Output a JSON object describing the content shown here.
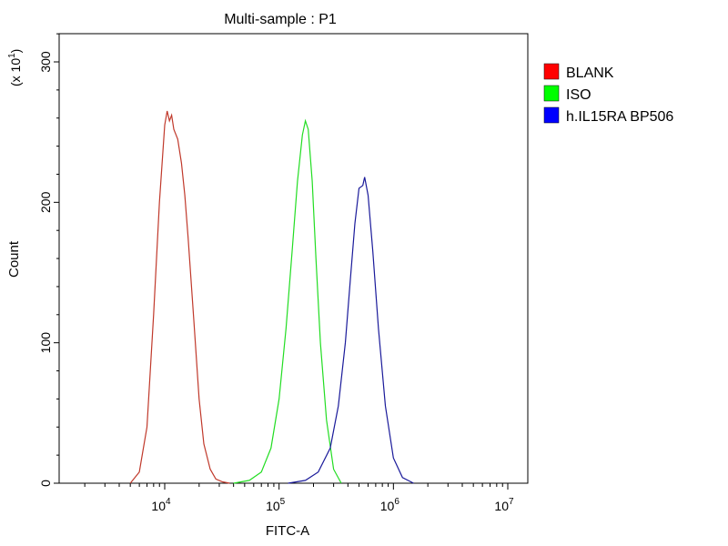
{
  "chart_data": {
    "type": "line",
    "title": "Multi-sample : P1",
    "xlabel": "FITC-A",
    "ylabel": "Count",
    "y_multiplier_label": "(x 10",
    "y_multiplier_exp": "1",
    "x_scale": "log",
    "xlim": [
      1000,
      10000000
    ],
    "ylim": [
      0,
      320
    ],
    "x_ticks": [
      {
        "base": "10",
        "exp": "4",
        "value": 10000
      },
      {
        "base": "10",
        "exp": "5",
        "value": 100000
      },
      {
        "base": "10",
        "exp": "6",
        "value": 1000000
      },
      {
        "base": "10",
        "exp": "7",
        "value": 10000000
      }
    ],
    "y_ticks": [
      {
        "label": "0",
        "value": 0
      },
      {
        "label": "100",
        "value": 100
      },
      {
        "label": "200",
        "value": 200
      },
      {
        "label": "300",
        "value": 300
      }
    ],
    "grid": false,
    "legend_position": "right",
    "series": [
      {
        "name": "BLANK",
        "color": "#ff0000",
        "line_color": "#c0392b",
        "x": [
          5000,
          6000,
          7000,
          8000,
          9000,
          10000,
          10500,
          11000,
          11500,
          12000,
          13000,
          14000,
          15000,
          16000,
          18000,
          20000,
          22000,
          25000,
          28000,
          32000,
          37000
        ],
        "y": [
          0,
          8,
          40,
          120,
          200,
          255,
          265,
          258,
          262,
          252,
          245,
          228,
          205,
          175,
          115,
          60,
          28,
          10,
          3,
          1,
          0
        ]
      },
      {
        "name": "ISO",
        "color": "#00ff00",
        "line_color": "#22dd22",
        "x": [
          40000,
          55000,
          70000,
          85000,
          100000,
          115000,
          130000,
          145000,
          160000,
          170000,
          180000,
          195000,
          210000,
          230000,
          260000,
          300000,
          350000
        ],
        "y": [
          0,
          2,
          8,
          25,
          60,
          110,
          165,
          215,
          248,
          258,
          252,
          215,
          160,
          100,
          45,
          10,
          0
        ]
      },
      {
        "name": "h.IL15RA BP506",
        "color": "#0000ff",
        "line_color": "#1a1a9a",
        "x": [
          120000,
          170000,
          220000,
          280000,
          330000,
          380000,
          420000,
          460000,
          500000,
          540000,
          560000,
          600000,
          660000,
          740000,
          850000,
          1000000,
          1200000,
          1500000
        ],
        "y": [
          0,
          2,
          8,
          25,
          55,
          100,
          145,
          185,
          210,
          212,
          218,
          205,
          165,
          110,
          55,
          18,
          4,
          0
        ]
      }
    ]
  }
}
